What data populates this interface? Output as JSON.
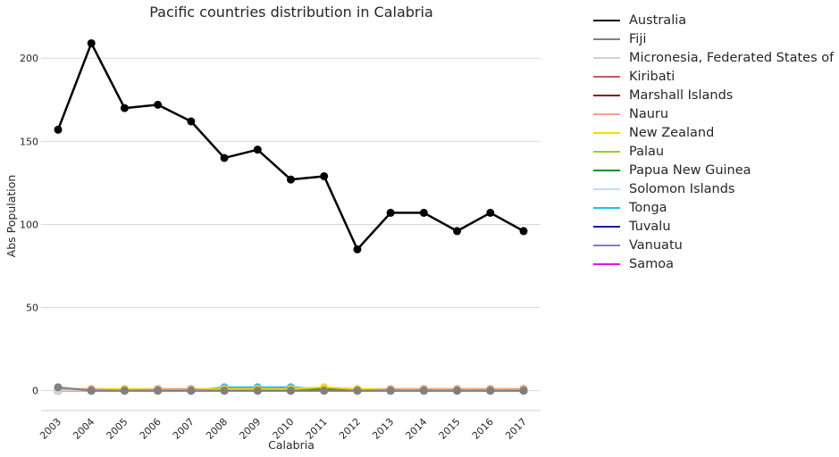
{
  "chart_data": {
    "type": "line",
    "title": "Pacific countries distribution in Calabria",
    "xlabel": "Calabria",
    "ylabel": "Abs Population",
    "categories": [
      "2003",
      "2004",
      "2005",
      "2006",
      "2007",
      "2008",
      "2009",
      "2010",
      "2011",
      "2012",
      "2013",
      "2014",
      "2015",
      "2016",
      "2017"
    ],
    "y_ticks": [
      0,
      50,
      100,
      150,
      200
    ],
    "ylim": [
      -12,
      220
    ],
    "grid": true,
    "legend_position": "outside-right",
    "series": [
      {
        "name": "Australia",
        "color": "#000000",
        "values": [
          157,
          209,
          170,
          172,
          162,
          140,
          145,
          127,
          129,
          85,
          107,
          107,
          96,
          107,
          96
        ]
      },
      {
        "name": "Fiji",
        "color": "#808080",
        "values": [
          2,
          0,
          0,
          0,
          0,
          0,
          0,
          0,
          0,
          0,
          0,
          0,
          0,
          0,
          0
        ]
      },
      {
        "name": "Micronesia, Federated States of",
        "color": "#d3d3d3",
        "values": [
          0,
          0,
          0,
          0,
          0,
          0,
          0,
          0,
          0,
          0,
          0,
          0,
          0,
          0,
          0
        ]
      },
      {
        "name": "Kiribati",
        "color": "#bc5f5f",
        "values": [
          0,
          0,
          0,
          0,
          0,
          0,
          0,
          0,
          0,
          0,
          0,
          0,
          0,
          0,
          0
        ]
      },
      {
        "name": "Marshall Islands",
        "color": "#8b1a1a",
        "values": [
          0,
          0,
          0,
          0,
          0,
          0,
          0,
          0,
          0,
          0,
          0,
          0,
          0,
          0,
          0
        ]
      },
      {
        "name": "Nauru",
        "color": "#f4a582",
        "values": [
          1,
          1,
          0,
          1,
          1,
          0,
          0,
          0,
          0,
          0,
          1,
          1,
          1,
          1,
          1
        ]
      },
      {
        "name": "New Zealand",
        "color": "#ffd700",
        "values": [
          1,
          1,
          1,
          1,
          1,
          1,
          1,
          1,
          2,
          1,
          1,
          1,
          1,
          1,
          1
        ]
      },
      {
        "name": "Palau",
        "color": "#9acd32",
        "values": [
          0,
          0,
          0,
          0,
          0,
          0,
          0,
          0,
          0,
          0,
          0,
          0,
          0,
          0,
          0
        ]
      },
      {
        "name": "Papua New Guinea",
        "color": "#228b22",
        "values": [
          0,
          0,
          0,
          1,
          0,
          1,
          1,
          1,
          1,
          0,
          0,
          0,
          0,
          0,
          0
        ]
      },
      {
        "name": "Solomon Islands",
        "color": "#b0e8f5",
        "values": [
          0,
          0,
          0,
          0,
          0,
          0,
          0,
          0,
          0,
          0,
          0,
          0,
          0,
          0,
          0
        ]
      },
      {
        "name": "Tonga",
        "color": "#1ec0f0",
        "values": [
          0,
          0,
          1,
          0,
          0,
          2,
          2,
          2,
          1,
          1,
          0,
          0,
          0,
          0,
          1
        ]
      },
      {
        "name": "Tuvalu",
        "color": "#1a1aaa",
        "values": [
          0,
          0,
          0,
          0,
          0,
          0,
          0,
          0,
          0,
          0,
          0,
          0,
          0,
          0,
          0
        ]
      },
      {
        "name": "Vanuatu",
        "color": "#9370db",
        "values": [
          0,
          0,
          0,
          0,
          0,
          0,
          0,
          0,
          0,
          0,
          0,
          0,
          0,
          0,
          0
        ]
      },
      {
        "name": "Samoa",
        "color": "#ee00ee",
        "values": [
          0,
          0,
          0,
          0,
          0,
          0,
          0,
          0,
          0,
          0,
          0,
          0,
          0,
          0,
          0
        ]
      }
    ]
  }
}
